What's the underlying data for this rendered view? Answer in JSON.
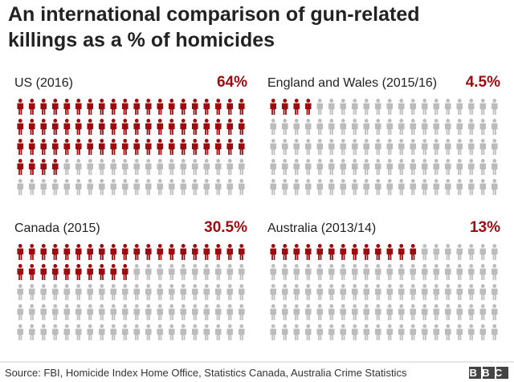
{
  "title": [
    "An international comparison of gun-related",
    "killings as a % of homicides"
  ],
  "source": "Source: FBI, Homicide Index Home Office, Statistics Canada, Australia Crime Statistics",
  "logo": "BBC",
  "chart_data": [
    {
      "type": "waffle",
      "title": "US (2016)",
      "values": [
        64
      ],
      "value_labels": [
        "64%"
      ],
      "color": "#9e0b0f",
      "rest_color": "#bcbcbc"
    },
    {
      "type": "waffle",
      "title": "England and Wales (2015/16)",
      "values": [
        4.5
      ],
      "value_labels": [
        "4.5%"
      ],
      "color": "#9e0b0f",
      "rest_color": "#bcbcbc"
    },
    {
      "type": "waffle",
      "title": "Canada (2015)",
      "values": [
        30.5
      ],
      "value_labels": [
        "30.5%"
      ],
      "color": "#9e0b0f",
      "rest_color": "#bcbcbc"
    },
    {
      "type": "waffle",
      "title": "Australia (2013/14)",
      "values": [
        13
      ],
      "value_labels": [
        "13%"
      ],
      "color": "#9e0b0f",
      "rest_color": "#bcbcbc"
    }
  ]
}
